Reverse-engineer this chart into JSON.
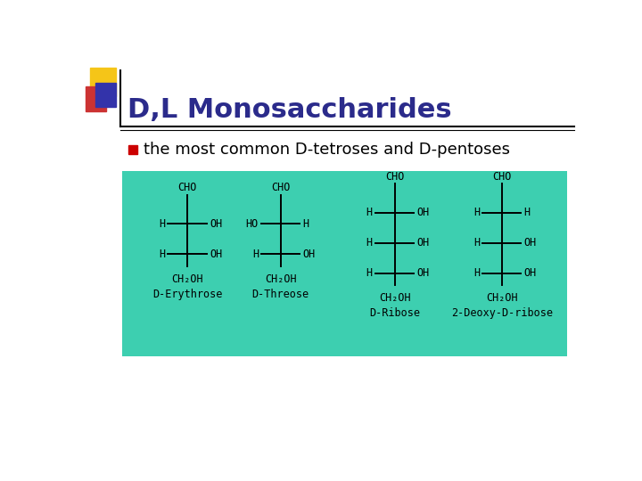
{
  "title": "D,L Monosaccharides",
  "title_color": "#2B2B8B",
  "title_fontsize": 22,
  "bg_color": "#FFFFFF",
  "bullet_text": "the most common D-tetroses and D-pentoses",
  "bullet_color": "#CC0000",
  "bullet_text_color": "#000000",
  "box_bg": "#3DCFB0",
  "accent_yellow": "#F5C518",
  "accent_red": "#CC3333",
  "accent_blue": "#3333AA",
  "struct_fs": 8.5,
  "name_fs": 8.5,
  "lw": 1.4,
  "molecules": [
    {
      "name": "D-Erythrose",
      "rows": [
        [
          "H",
          "OH"
        ],
        [
          "H",
          "OH"
        ]
      ],
      "pentose": false
    },
    {
      "name": "D-Threose",
      "rows": [
        [
          "HO",
          "H"
        ],
        [
          "H",
          "OH"
        ]
      ],
      "pentose": false
    },
    {
      "name": "D-Ribose",
      "rows": [
        [
          "H",
          "OH"
        ],
        [
          "H",
          "OH"
        ],
        [
          "H",
          "OH"
        ]
      ],
      "pentose": true
    },
    {
      "name": "2-Deoxy-D-ribose",
      "rows": [
        [
          "H",
          "H"
        ],
        [
          "H",
          "OH"
        ],
        [
          "H",
          "OH"
        ]
      ],
      "pentose": true
    }
  ]
}
